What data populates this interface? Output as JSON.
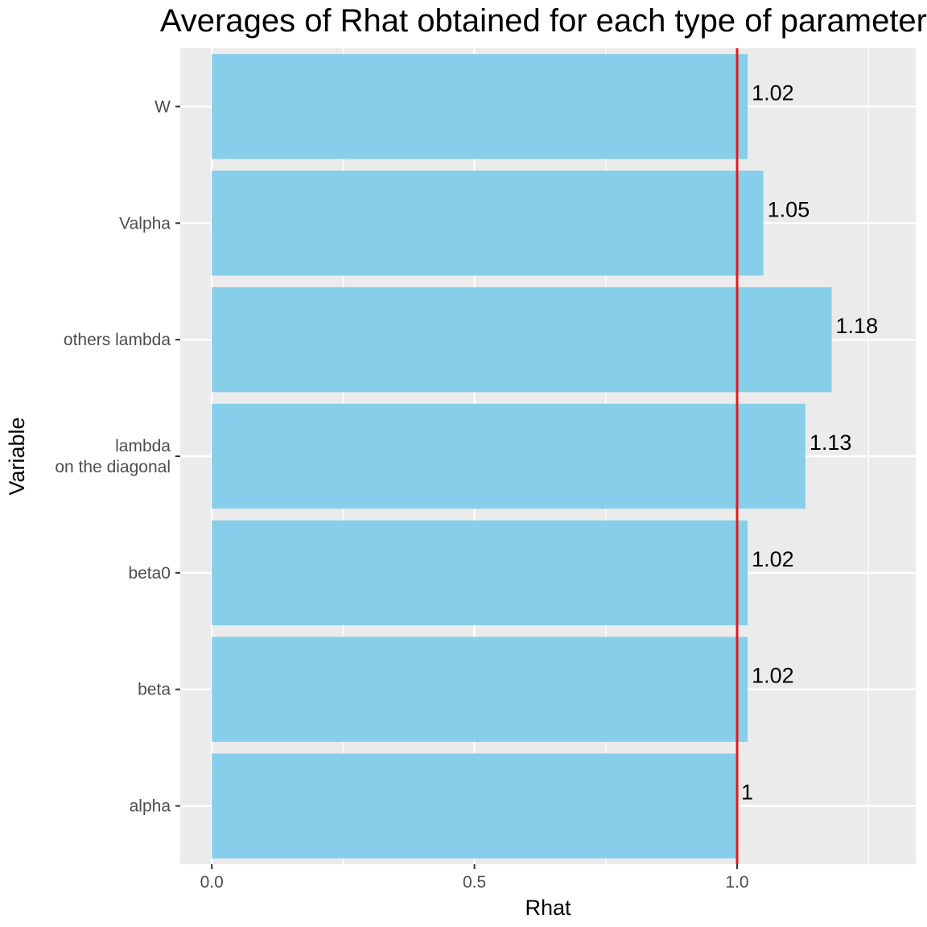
{
  "chart_data": {
    "type": "bar",
    "orientation": "horizontal",
    "title": "Averages of Rhat obtained for each type of parameter",
    "xlabel": "Rhat",
    "ylabel": "Variable",
    "categories": [
      "alpha",
      "beta",
      "beta0",
      "lambda\non the diagonal",
      "others lambda",
      "Valpha",
      "W"
    ],
    "values": [
      1.0,
      1.02,
      1.02,
      1.13,
      1.18,
      1.05,
      1.02
    ],
    "data_labels": [
      "1",
      "1.02",
      "1.02",
      "1.13",
      "1.18",
      "1.05",
      "1.02"
    ],
    "xlim": [
      -0.06,
      1.34
    ],
    "x_ticks": [
      0.0,
      0.5,
      1.0
    ],
    "x_tick_labels": [
      "0.0",
      "0.5",
      "1.0"
    ],
    "reference_line": {
      "x": 1.0,
      "color": "#e41a1c"
    },
    "bar_color": "#87ceeb",
    "panel_background": "#ebebeb",
    "grid": true
  }
}
